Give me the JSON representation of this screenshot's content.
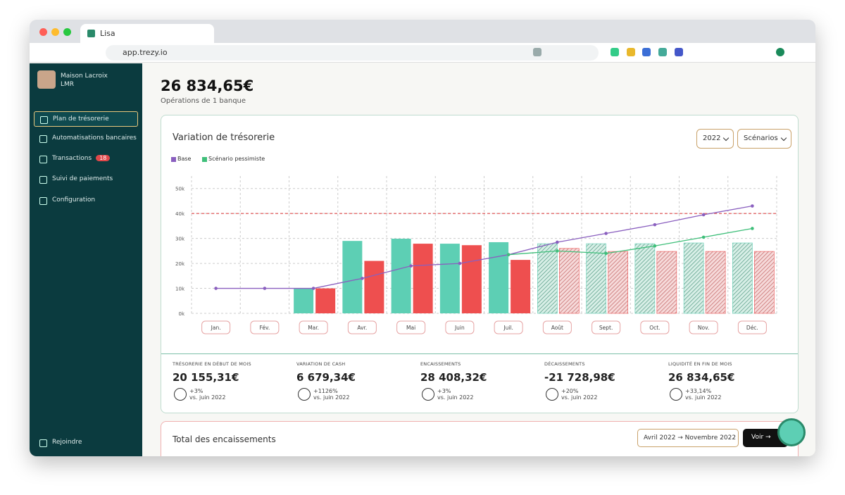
{
  "browser": {
    "tab_title": "Lisa",
    "url": "app.trezy.io"
  },
  "sidebar": {
    "company": "Maison Lacroix",
    "company_sub": "LMR",
    "nav": [
      "Plan de trésorerie",
      "Automatisations bancaires",
      "Transactions",
      "Suivi de paiements",
      "Configuration"
    ],
    "transactions_badge": "18",
    "footer": "Rejoindre"
  },
  "header": {
    "balance": "26 834,65€",
    "subtitle": "Opérations de 1 banque"
  },
  "card": {
    "title": "Variation de trésorerie",
    "year": "2022",
    "scenarios": "Scénarios"
  },
  "chart_data": {
    "type": "combo",
    "categories": [
      "Jan.",
      "Fév.",
      "Mar.",
      "Avr.",
      "Mai",
      "Juin",
      "Juil.",
      "Août",
      "Sept.",
      "Oct.",
      "Nov.",
      "Déc."
    ],
    "ylim": [
      0,
      55
    ],
    "yticks": [
      {
        "value": 0,
        "label": "0k"
      },
      {
        "value": 10,
        "label": "10k"
      },
      {
        "value": 20,
        "label": "20k"
      },
      {
        "value": 30,
        "label": "30k"
      },
      {
        "value": 40,
        "label": "40k"
      },
      {
        "value": 50,
        "label": "50k"
      }
    ],
    "grid": true,
    "threshold": 40,
    "threshold_color": "#e0484a",
    "forecast_from": 7,
    "bars": [
      {
        "color": "#5dcfb4",
        "values": [
          0,
          0,
          10,
          29,
          29.9,
          27.9,
          28.5,
          27.9,
          27.9,
          27.9,
          28.2,
          28.2
        ]
      },
      {
        "color": "#ee4f4f",
        "values": [
          0,
          0,
          10,
          21,
          27.9,
          27.3,
          21.4,
          26,
          24.8,
          24.8,
          24.8,
          24.8
        ]
      }
    ],
    "series": [
      {
        "name": "Base",
        "color": "#8a5fbf",
        "values": [
          10,
          10,
          10,
          14,
          19,
          20,
          23.5,
          28.5,
          32,
          35.5,
          39.5,
          43
        ]
      },
      {
        "name": "Scénario pessimiste",
        "color": "#3fbf7a",
        "values": [
          null,
          null,
          null,
          null,
          null,
          null,
          23.5,
          25,
          24,
          27,
          30.5,
          34
        ]
      }
    ]
  },
  "stats": [
    {
      "label": "TRÉSORERIE EN DÉBUT DE MOIS",
      "value": "20 155,31€",
      "change": "+3%",
      "compare": "vs. juin 2022"
    },
    {
      "label": "VARIATION DE CASH",
      "value": "6 679,34€",
      "change": "+1126%",
      "compare": "vs. juin 2022"
    },
    {
      "label": "ENCAISSEMENTS",
      "value": "28 408,32€",
      "change": "+3%",
      "compare": "vs. juin 2022"
    },
    {
      "label": "DÉCAISSEMENTS",
      "value": "-21 728,98€",
      "change": "+20%",
      "compare": "vs. juin 2022"
    },
    {
      "label": "LIQUIDITÉ EN FIN DE MOIS",
      "value": "26 834,65€",
      "change": "+33,14%",
      "compare": "vs. juin 2022"
    }
  ],
  "next_card": {
    "title": "Total des encaissements",
    "range": "Avril 2022 → Novembre 2022",
    "button": "Voir →"
  }
}
